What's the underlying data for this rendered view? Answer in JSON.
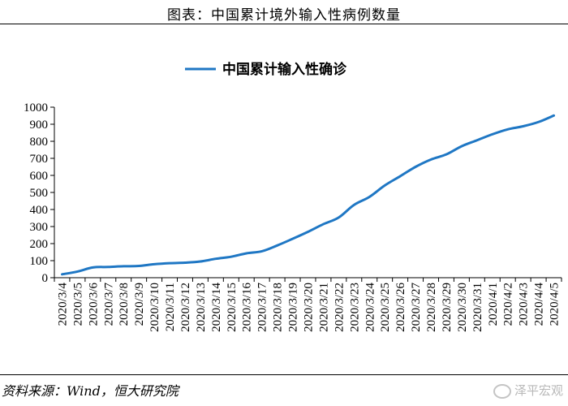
{
  "figure_title": "图表：中国累计境外输入性病例数量",
  "source": "资料来源：Wind，恒大研究院",
  "watermark": "泽平宏观",
  "chart_data": {
    "type": "line",
    "title": "",
    "xlabel": "",
    "ylabel": "",
    "ylim": [
      0,
      1000
    ],
    "y_ticks": [
      0,
      100,
      200,
      300,
      400,
      500,
      600,
      700,
      800,
      900,
      1000
    ],
    "legend_position": "top-center",
    "grid": false,
    "series": [
      {
        "name": "中国累计输入性确诊",
        "color": "#1F77C4",
        "x": [
          "2020/3/4",
          "2020/3/5",
          "2020/3/6",
          "2020/3/7",
          "2020/3/8",
          "2020/3/9",
          "2020/3/10",
          "2020/3/11",
          "2020/3/12",
          "2020/3/13",
          "2020/3/14",
          "2020/3/15",
          "2020/3/16",
          "2020/3/17",
          "2020/3/18",
          "2020/3/19",
          "2020/3/20",
          "2020/3/21",
          "2020/3/22",
          "2020/3/23",
          "2020/3/24",
          "2020/3/25",
          "2020/3/26",
          "2020/3/27",
          "2020/3/28",
          "2020/3/29",
          "2020/3/30",
          "2020/3/31",
          "2020/4/1",
          "2020/4/2",
          "2020/4/3",
          "2020/4/4",
          "2020/4/5"
        ],
        "values": [
          20,
          36,
          60,
          63,
          67,
          69,
          79,
          85,
          88,
          95,
          111,
          123,
          143,
          155,
          189,
          228,
          269,
          314,
          353,
          427,
          474,
          541,
          595,
          650,
          693,
          723,
          771,
          806,
          841,
          870,
          888,
          913,
          951
        ]
      }
    ]
  }
}
